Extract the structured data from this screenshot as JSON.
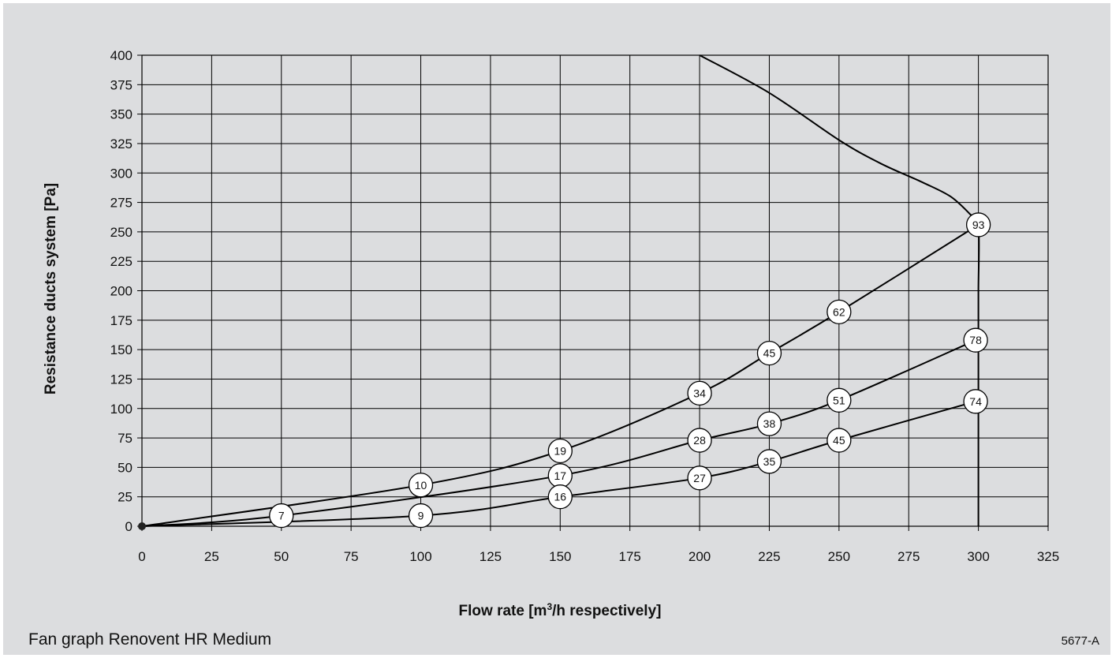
{
  "caption": "Fan graph Renovent HR Medium",
  "code": "5677-A",
  "chart_data": {
    "type": "line",
    "title": "",
    "xlabel_parts": [
      "Flow rate [m",
      "3",
      "/h respectively]"
    ],
    "ylabel": "Resistance ducts system [Pa]",
    "xlim": [
      0,
      325
    ],
    "ylim": [
      0,
      400
    ],
    "x_ticks": [
      "0",
      "25",
      "50",
      "75",
      "100",
      "125",
      "150",
      "175",
      "200",
      "225",
      "250",
      "275",
      "300",
      "325"
    ],
    "y_ticks": [
      "0",
      "25",
      "50",
      "75",
      "100",
      "125",
      "150",
      "175",
      "200",
      "225",
      "250",
      "275",
      "300",
      "325",
      "350",
      "375",
      "400"
    ],
    "grid": true,
    "series": [
      {
        "points": [
          [
            0,
            0
          ],
          [
            100,
            35
          ],
          [
            150,
            64
          ],
          [
            200,
            113
          ],
          [
            225,
            147
          ],
          [
            250,
            182
          ],
          [
            300,
            256
          ]
        ],
        "markers": [
          {
            "x": 100,
            "y": 35,
            "label": "10"
          },
          {
            "x": 150,
            "y": 64,
            "label": "19"
          },
          {
            "x": 200,
            "y": 113,
            "label": "34"
          },
          {
            "x": 225,
            "y": 147,
            "label": "45"
          },
          {
            "x": 250,
            "y": 182,
            "label": "62"
          },
          {
            "x": 300,
            "y": 256,
            "label": "93"
          }
        ]
      },
      {
        "points": [
          [
            0,
            0
          ],
          [
            50,
            9
          ],
          [
            150,
            43
          ],
          [
            200,
            73
          ],
          [
            225,
            87
          ],
          [
            250,
            107
          ],
          [
            299,
            158
          ]
        ],
        "markers": [
          {
            "x": 50,
            "y": 9,
            "label": "7"
          },
          {
            "x": 150,
            "y": 43,
            "label": "17"
          },
          {
            "x": 200,
            "y": 73,
            "label": "28"
          },
          {
            "x": 225,
            "y": 87,
            "label": "38"
          },
          {
            "x": 250,
            "y": 107,
            "label": "51"
          },
          {
            "x": 299,
            "y": 158,
            "label": "78"
          }
        ]
      },
      {
        "points": [
          [
            0,
            0
          ],
          [
            100,
            9
          ],
          [
            150,
            25
          ],
          [
            200,
            41
          ],
          [
            225,
            55
          ],
          [
            250,
            73
          ],
          [
            299,
            106
          ]
        ],
        "markers": [
          {
            "x": 100,
            "y": 9,
            "label": "9"
          },
          {
            "x": 150,
            "y": 25,
            "label": "16"
          },
          {
            "x": 200,
            "y": 41,
            "label": "27"
          },
          {
            "x": 225,
            "y": 55,
            "label": "35"
          },
          {
            "x": 250,
            "y": 73,
            "label": "45"
          },
          {
            "x": 299,
            "y": 106,
            "label": "74"
          }
        ]
      },
      {
        "points": [
          [
            200,
            400
          ],
          [
            225,
            368
          ],
          [
            250,
            328
          ],
          [
            265,
            308
          ],
          [
            280,
            292
          ],
          [
            290,
            280
          ],
          [
            297,
            265
          ],
          [
            300,
            256
          ],
          [
            300,
            200
          ],
          [
            300,
            158
          ],
          [
            300,
            106
          ],
          [
            300,
            60
          ],
          [
            300,
            0
          ]
        ],
        "markers": []
      }
    ]
  }
}
